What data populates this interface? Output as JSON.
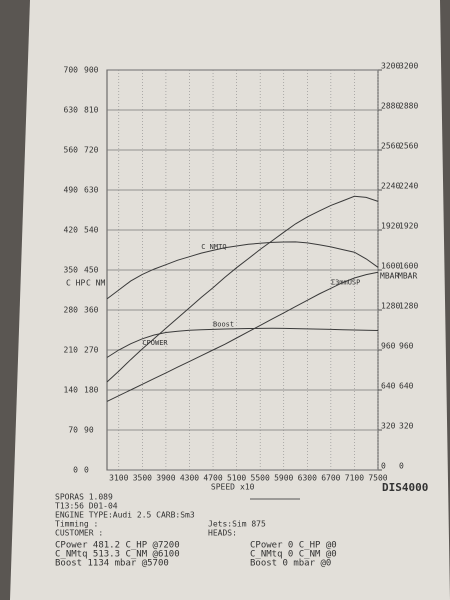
{
  "chart_data": {
    "type": "line",
    "x_label": "SPEED",
    "x_unit": "x10",
    "y_label": "C HP",
    "y3_label": "C NM",
    "y2_label": "MBAR",
    "x": [
      2900,
      3100,
      3300,
      3500,
      3700,
      3900,
      4100,
      4300,
      4500,
      4700,
      4900,
      5100,
      5300,
      5500,
      5700,
      5900,
      6100,
      6300,
      6500,
      6700,
      6900,
      7100,
      7300,
      7500
    ],
    "xlim": [
      2900,
      7500
    ],
    "xticks": [
      3100,
      3500,
      3900,
      4300,
      4700,
      5100,
      5500,
      5900,
      6300,
      6700,
      7100,
      7500
    ],
    "ylim": [
      0,
      700
    ],
    "yticks": [
      0,
      70,
      140,
      210,
      280,
      350,
      420,
      490,
      560,
      630,
      700
    ],
    "y3lim": [
      0,
      900
    ],
    "y3ticks": [
      0,
      90,
      180,
      270,
      360,
      450,
      540,
      630,
      720,
      810,
      900
    ],
    "y2lim": [
      0,
      3200
    ],
    "y2ticks": [
      0,
      320,
      640,
      960,
      1280,
      1600,
      1920,
      2240,
      2560,
      2880,
      3200
    ],
    "grid": true,
    "series": [
      {
        "name": "C NMTQ",
        "color": "#3a3a3a",
        "axis": "y3",
        "values": [
          385,
          405,
          425,
          440,
          452,
          462,
          472,
          480,
          488,
          494,
          500,
          504,
          508,
          510,
          512,
          513,
          513.3,
          511,
          507,
          502,
          496,
          490,
          475,
          456
        ]
      },
      {
        "name": "CPOWER",
        "color": "#3a3a3a",
        "axis": "y",
        "values": [
          154,
          173,
          193,
          212,
          230,
          248,
          266,
          284,
          302,
          319,
          337,
          354,
          370,
          386,
          401,
          416,
          430.7,
          443,
          453,
          463,
          471,
          479,
          477,
          470
        ]
      },
      {
        "name": "Boost",
        "color": "#3a3a3a",
        "axis": "y2",
        "values": [
          900,
          960,
          1010,
          1050,
          1080,
          1100,
          1110,
          1118,
          1122,
          1125,
          1128,
          1130,
          1132,
          1133,
          1134,
          1133,
          1131,
          1129,
          1127,
          1125,
          1122,
          1120,
          1118,
          1116
        ]
      },
      {
        "name": "Σ3mmUSP",
        "color": "#3a3a3a",
        "axis": "y",
        "values": [
          120,
          130,
          140,
          150,
          160,
          170,
          180,
          190,
          200,
          210,
          220,
          231,
          242,
          253,
          264,
          275,
          286,
          297,
          308,
          318,
          328,
          336,
          342,
          346
        ]
      }
    ]
  },
  "brand": "DIS4000",
  "info": {
    "left": [
      "SPORAS 1.089",
      "T13:56 D01-04",
      "ENGINE TYPE:Audi 2.5 CARB:Sm3",
      "Timming   :",
      "CUSTOMER  :"
    ],
    "right": [
      "Jets:Sim 875",
      "HEADS:"
    ],
    "results_left": [
      "CPower 481.2 C_HP @7200",
      "C_NMtq 513.3 C_NM @6100",
      "Boost 1134 mbar @5700"
    ],
    "results_right": [
      "CPower 0 C_HP @0",
      "C_NMtq 0 C_NM @0",
      "Boost 0 mbar @0"
    ]
  }
}
